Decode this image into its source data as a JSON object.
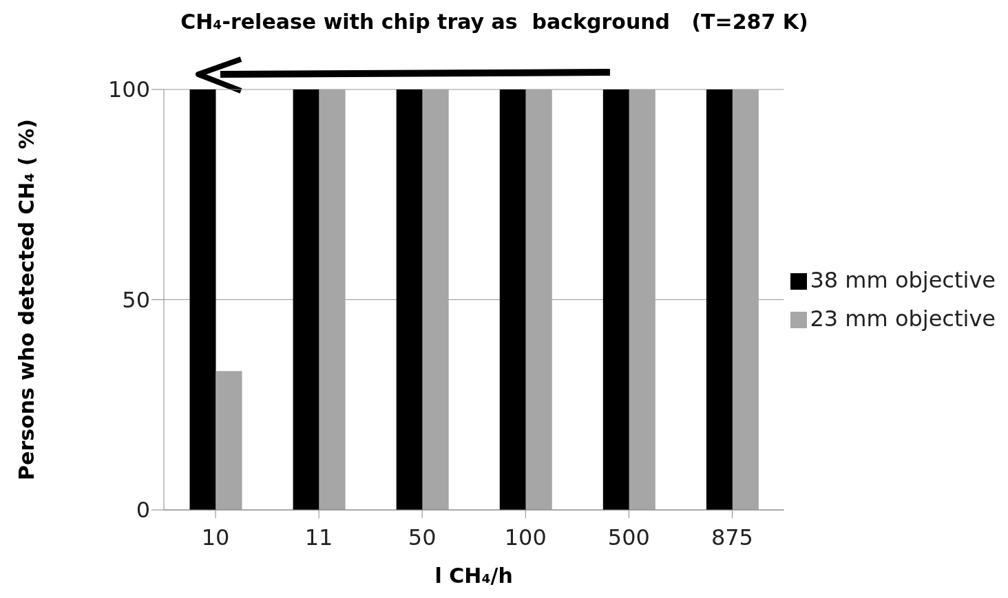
{
  "chart_data": {
    "type": "bar",
    "title": "CH₄-release with chip tray as  background   (T=287 K)",
    "xlabel": "l CH₄/h",
    "ylabel": "Persons who detected  CH₄ ( %)",
    "categories": [
      "10",
      "11",
      "50",
      "100",
      "500",
      "875"
    ],
    "series": [
      {
        "name": "38 mm objective",
        "color": "#000000",
        "values": [
          100,
          100,
          100,
          100,
          100,
          100
        ]
      },
      {
        "name": "23 mm objective",
        "color": "#a6a6a6",
        "values": [
          33,
          100,
          100,
          100,
          100,
          100
        ]
      }
    ],
    "ylim": [
      0,
      100
    ],
    "yticks": [
      0,
      50,
      100
    ],
    "grid": "y",
    "legend": "right"
  }
}
